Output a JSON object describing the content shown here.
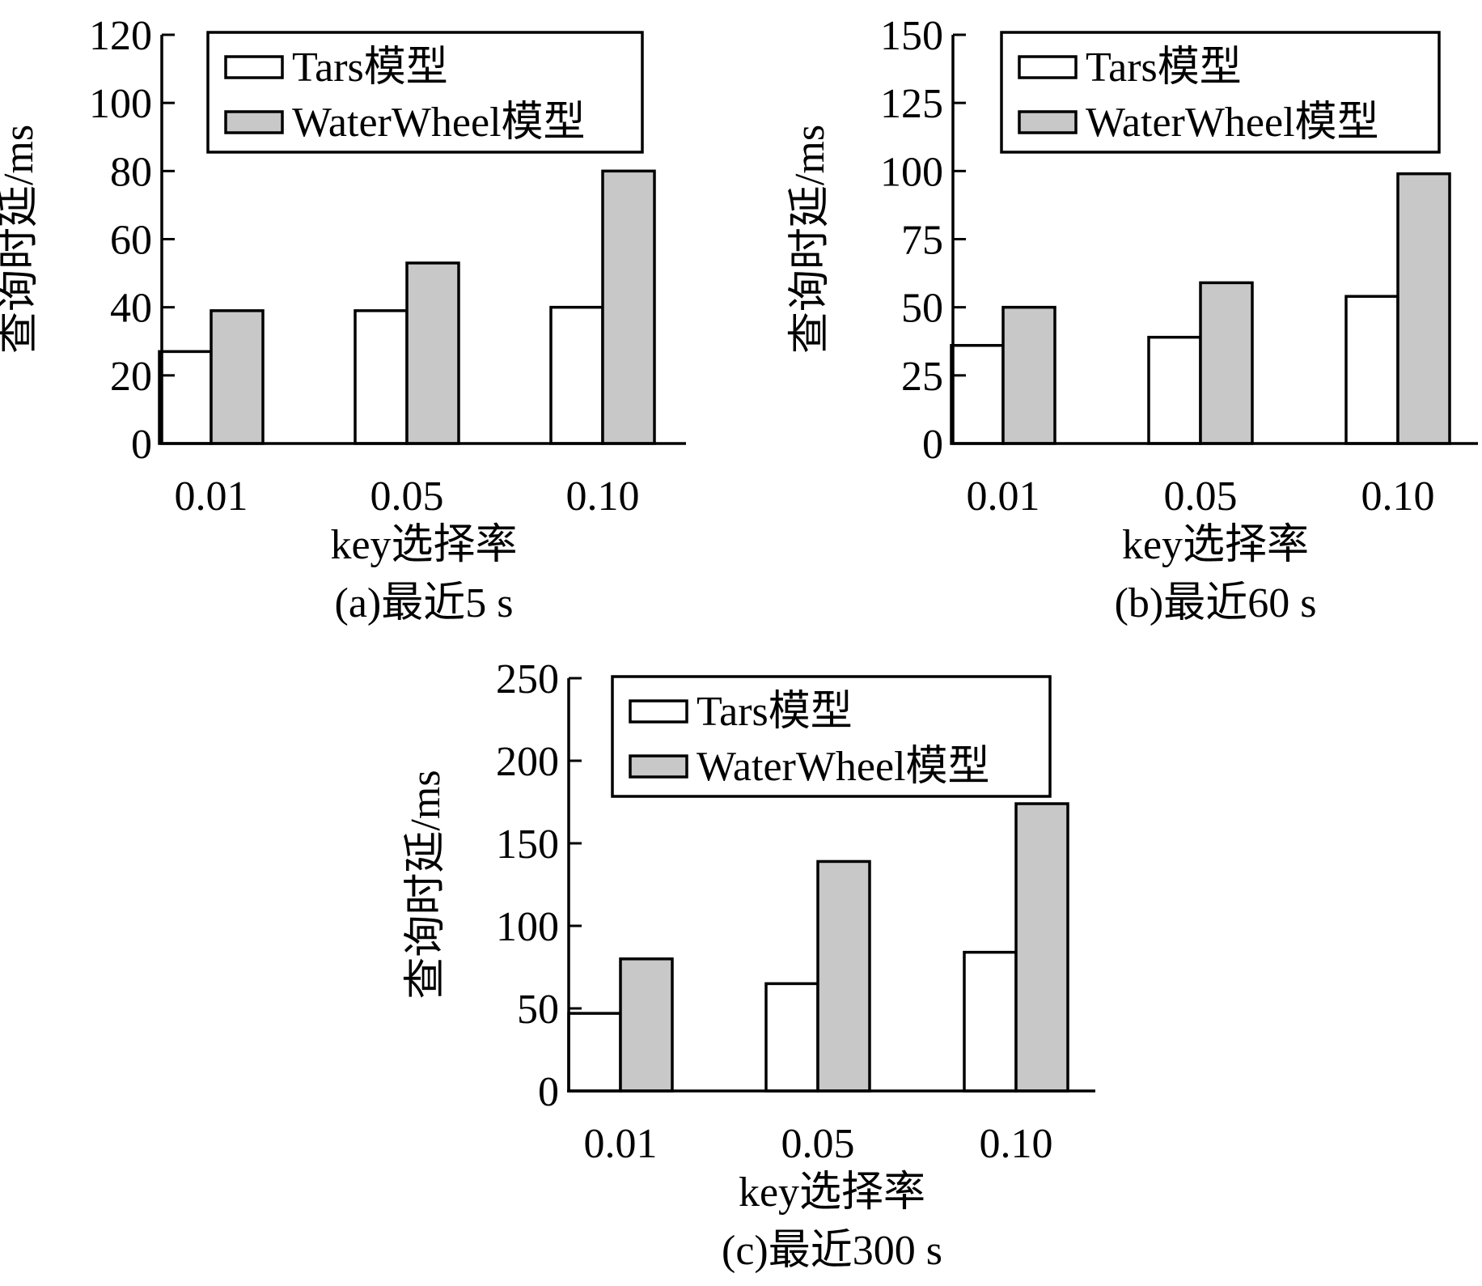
{
  "colors": {
    "tars": "#ffffff",
    "waterwheel": "#c8c8c8",
    "stroke": "#000000"
  },
  "chart_data": [
    {
      "type": "bar",
      "categories": [
        "0.01",
        "0.05",
        "0.10"
      ],
      "series": [
        {
          "name": "Tars模型",
          "values": [
            27,
            39,
            40
          ]
        },
        {
          "name": "WaterWheel模型",
          "values": [
            39,
            53,
            80
          ]
        }
      ],
      "ylim": [
        0,
        120
      ],
      "yticks": [
        "0",
        "20",
        "40",
        "60",
        "80",
        "100",
        "120"
      ],
      "ylabel": "查询时延/ms",
      "xlabel": "key选择率",
      "caption": "(a)最近5 s",
      "legend": "top-left",
      "grid": false
    },
    {
      "type": "bar",
      "categories": [
        "0.01",
        "0.05",
        "0.10"
      ],
      "series": [
        {
          "name": "Tars模型",
          "values": [
            36,
            39,
            54
          ]
        },
        {
          "name": "WaterWheel模型",
          "values": [
            50,
            59,
            99
          ]
        }
      ],
      "ylim": [
        0,
        150
      ],
      "yticks": [
        "0",
        "25",
        "50",
        "75",
        "100",
        "125",
        "150"
      ],
      "ylabel": "查询时延/ms",
      "xlabel": "key选择率",
      "caption": "(b)最近60 s",
      "legend": "top-left",
      "grid": false
    },
    {
      "type": "bar",
      "categories": [
        "0.01",
        "0.05",
        "0.10"
      ],
      "series": [
        {
          "name": "Tars模型",
          "values": [
            47,
            65,
            84
          ]
        },
        {
          "name": "WaterWheel模型",
          "values": [
            80,
            139,
            174
          ]
        }
      ],
      "ylim": [
        0,
        250
      ],
      "yticks": [
        "0",
        "50",
        "100",
        "150",
        "200",
        "250"
      ],
      "ylabel": "查询时延/ms",
      "xlabel": "key选择率",
      "caption": "(c)最近300 s",
      "legend": "top-left",
      "grid": false
    }
  ]
}
